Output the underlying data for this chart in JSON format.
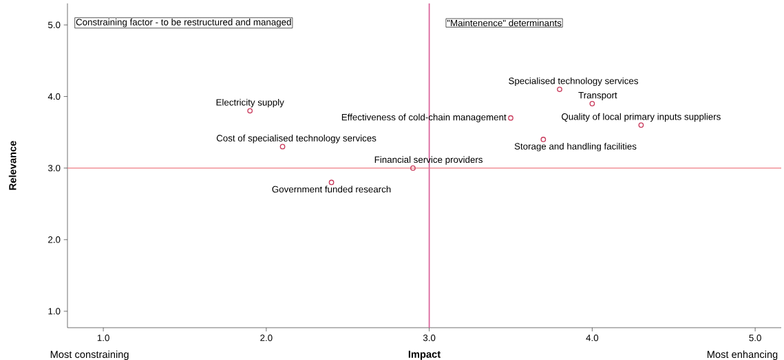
{
  "chart_data": {
    "type": "scatter",
    "xlabel": "Impact",
    "ylabel": "Relevance",
    "x": [
      1.9,
      2.1,
      2.4,
      2.9,
      3.5,
      3.7,
      3.8,
      4.0,
      4.3
    ],
    "values": [
      3.8,
      3.3,
      2.8,
      3.0,
      3.7,
      3.4,
      4.1,
      3.9,
      3.6
    ],
    "color": "#c8385a",
    "marker": "circle",
    "xlim": [
      0.78,
      5.16
    ],
    "ylim": [
      0.77,
      5.3
    ],
    "xticks": [
      {
        "value": 1,
        "label": "1.0"
      },
      {
        "value": 2,
        "label": "2.0"
      },
      {
        "value": 3,
        "label": "3.0"
      },
      {
        "value": 4,
        "label": "4.0"
      },
      {
        "value": 5,
        "label": "5.0"
      }
    ],
    "yticks": [
      {
        "value": 1,
        "label": "1.0"
      },
      {
        "value": 2,
        "label": "2.0"
      },
      {
        "value": 3,
        "label": "3.0"
      },
      {
        "value": 4,
        "label": "4.0"
      },
      {
        "value": 5,
        "label": "5.0"
      }
    ],
    "ref_lines": [
      {
        "axis": "x",
        "value": 3,
        "color": "#d8629a"
      },
      {
        "axis": "y",
        "value": 3,
        "color": "#ee7f86"
      }
    ],
    "annotations": [
      "Constraining factor - to be restructured and managed",
      "\"Maintenence\" determinants",
      "Most constraining",
      "Most enhancing",
      {
        "text": "Electricity supply",
        "x": 1.9,
        "y": 3.8
      },
      {
        "text": "Cost of specialised technology services",
        "x": 2.1,
        "y": 3.3
      },
      {
        "text": "Government funded research",
        "x": 2.4,
        "y": 2.8
      },
      {
        "text": "Financial service providers",
        "x": 2.9,
        "y": 3.0
      },
      {
        "text": "Effectiveness of cold-chain management",
        "x": 3.5,
        "y": 3.7
      },
      {
        "text": "Storage and handling facilities",
        "x": 3.7,
        "y": 3.4
      },
      {
        "text": "Specialised technology services",
        "x": 3.8,
        "y": 4.1
      },
      {
        "text": "Transport",
        "x": 4.0,
        "y": 3.9
      },
      {
        "text": "Quality of local primary inputs suppliers",
        "x": 4.3,
        "y": 3.6
      }
    ]
  }
}
